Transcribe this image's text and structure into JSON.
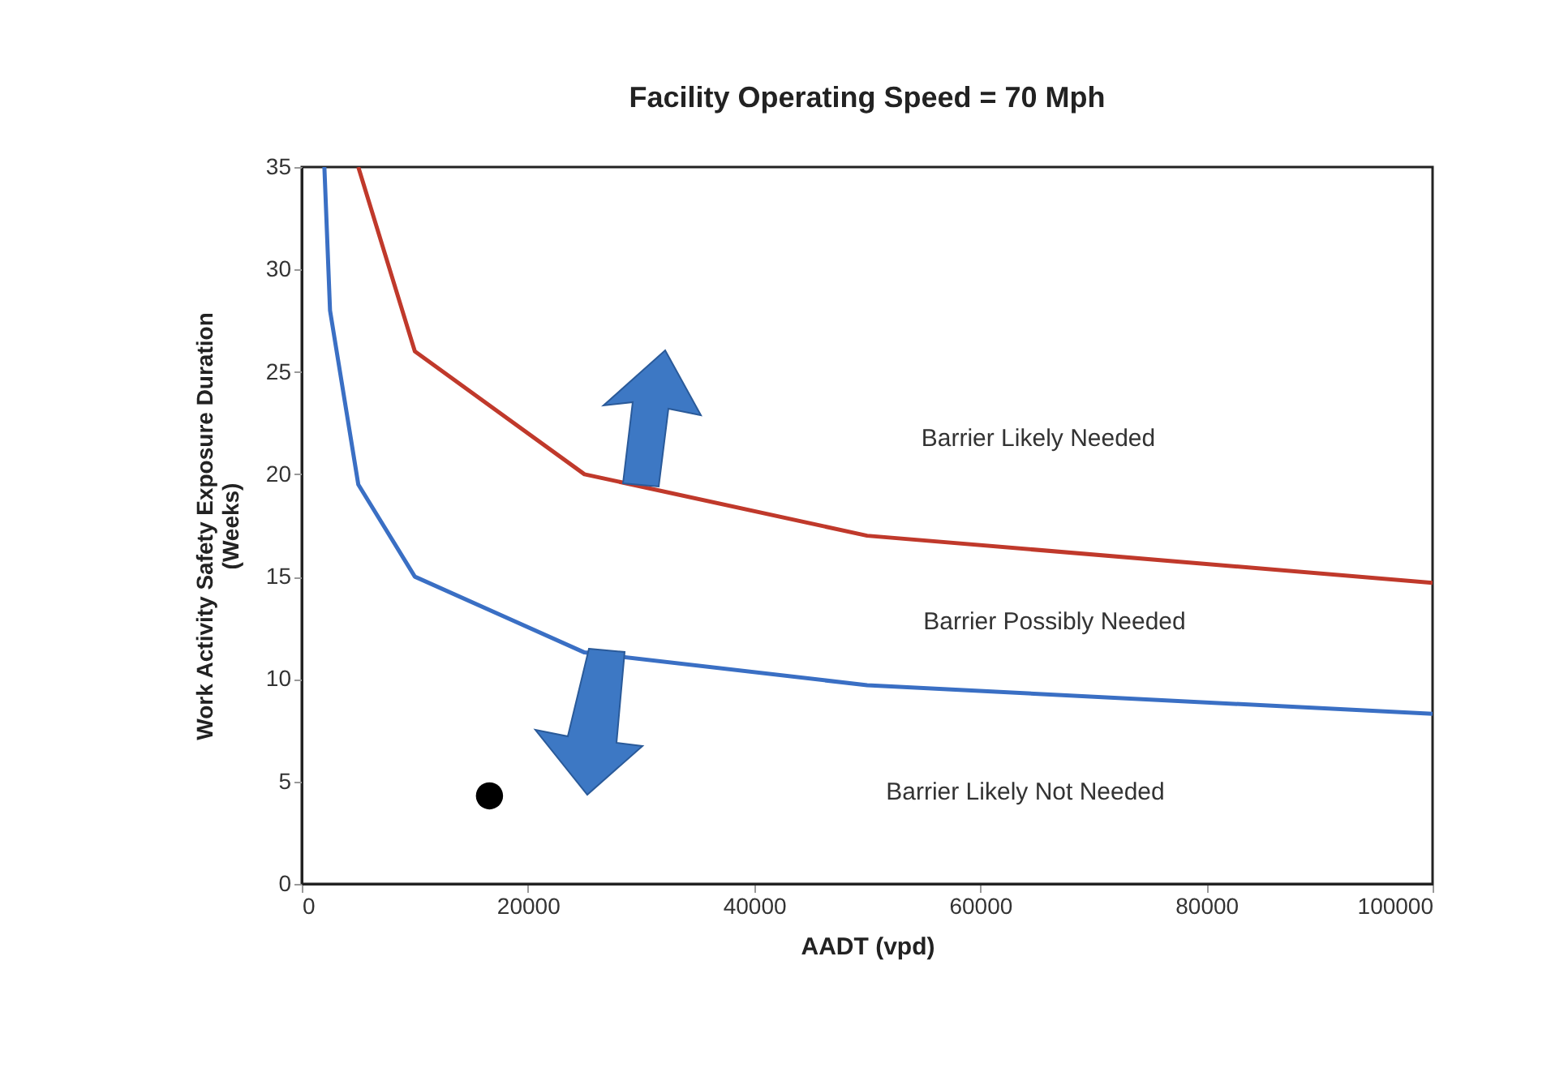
{
  "chart_data": {
    "type": "line",
    "title": "Facility Operating Speed = 70 Mph",
    "xlabel": "AADT (vpd)",
    "ylabel": "Work Activity Safety Exposure Duration\n(Weeks)",
    "xlim": [
      0,
      100000
    ],
    "xticks": [
      0,
      20000,
      40000,
      60000,
      80000,
      100000
    ],
    "ylim": [
      0,
      35
    ],
    "yticks": [
      0,
      5,
      10,
      15,
      20,
      25,
      30,
      35
    ],
    "grid": false,
    "annotations": [
      "Barrier Likely Needed",
      "Barrier Possibly Needed",
      "Barrier Likely Not Needed"
    ],
    "series": [
      {
        "color": "#c0392b",
        "x": [
          5000,
          10000,
          25000,
          50000,
          100000
        ],
        "values": [
          35,
          26,
          20,
          17,
          14.7
        ]
      },
      {
        "color": "#3a6fc4",
        "x": [
          2000,
          2500,
          5000,
          10000,
          25000,
          50000,
          100000
        ],
        "values": [
          35,
          28,
          19.5,
          15,
          11.3,
          9.7,
          8.3
        ]
      },
      {
        "type": "scatter",
        "color": "#000000",
        "x": [
          16600
        ],
        "values": [
          4.3
        ]
      }
    ]
  }
}
